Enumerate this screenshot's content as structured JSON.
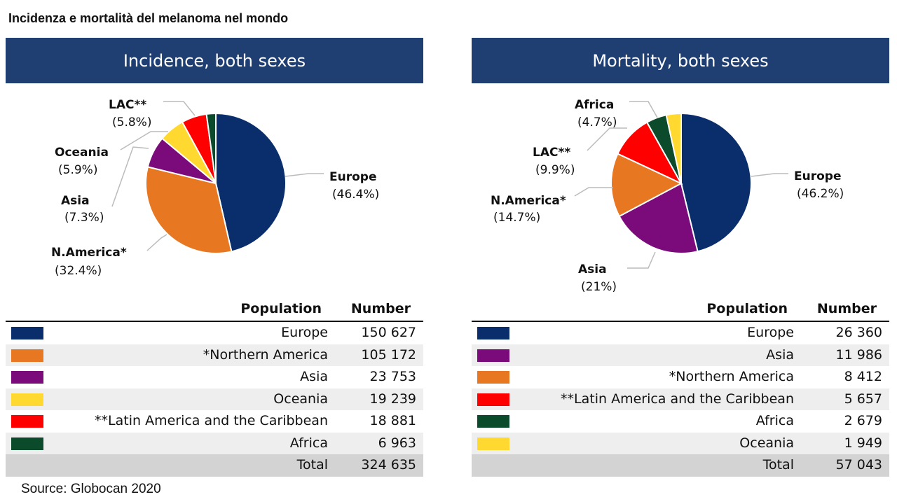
{
  "title": "Incidenza e mortalità del melanoma nel mondo",
  "source": "Source: Globocan 2020",
  "colors": {
    "Europe": "#0a2d6b",
    "N.America": "#e87722",
    "Asia": "#7b0a7b",
    "Oceania": "#ffd92f",
    "LAC": "#ff0000",
    "Africa": "#0b4a2a"
  },
  "chart_data": [
    {
      "type": "pie",
      "title": "Incidence, both sexes",
      "slices": [
        {
          "key": "Europe",
          "label": "Europe",
          "pct_label": "(46.4%)",
          "value": 150627
        },
        {
          "key": "N.America",
          "label": "N.America*",
          "pct_label": "(32.4%)",
          "value": 105172
        },
        {
          "key": "Asia",
          "label": "Asia",
          "pct_label": "(7.3%)",
          "value": 23753
        },
        {
          "key": "Oceania",
          "label": "Oceania",
          "pct_label": "(5.9%)",
          "value": 19239
        },
        {
          "key": "LAC",
          "label": "LAC**",
          "pct_label": "(5.8%)",
          "value": 18881
        },
        {
          "key": "Africa",
          "label": "",
          "pct_label": "",
          "value": 6963
        }
      ],
      "table": {
        "headers": [
          "Population",
          "Number"
        ],
        "rows": [
          [
            "Europe",
            "150 627",
            "Europe"
          ],
          [
            "*Northern America",
            "105 172",
            "N.America"
          ],
          [
            "Asia",
            "23 753",
            "Asia"
          ],
          [
            "Oceania",
            "19 239",
            "Oceania"
          ],
          [
            "**Latin America and the Caribbean",
            "18 881",
            "LAC"
          ],
          [
            "Africa",
            "6 963",
            "Africa"
          ]
        ],
        "total": [
          "Total",
          "324 635"
        ]
      }
    },
    {
      "type": "pie",
      "title": "Mortality, both sexes",
      "slices": [
        {
          "key": "Europe",
          "label": "Europe",
          "pct_label": "(46.2%)",
          "value": 26360
        },
        {
          "key": "Asia",
          "label": "Asia",
          "pct_label": "(21%)",
          "value": 11986
        },
        {
          "key": "N.America",
          "label": "N.America*",
          "pct_label": "(14.7%)",
          "value": 8412
        },
        {
          "key": "LAC",
          "label": "LAC**",
          "pct_label": "(9.9%)",
          "value": 5657
        },
        {
          "key": "Africa",
          "label": "Africa",
          "pct_label": "(4.7%)",
          "value": 2679
        },
        {
          "key": "Oceania",
          "label": "",
          "pct_label": "",
          "value": 1949
        }
      ],
      "table": {
        "headers": [
          "Population",
          "Number"
        ],
        "rows": [
          [
            "Europe",
            "26 360",
            "Europe"
          ],
          [
            "Asia",
            "11 986",
            "Asia"
          ],
          [
            "*Northern America",
            "8 412",
            "N.America"
          ],
          [
            "**Latin America and the Caribbean",
            "5 657",
            "LAC"
          ],
          [
            "Africa",
            "2 679",
            "Africa"
          ],
          [
            "Oceania",
            "1 949",
            "Oceania"
          ]
        ],
        "total": [
          "Total",
          "57 043"
        ]
      }
    }
  ]
}
